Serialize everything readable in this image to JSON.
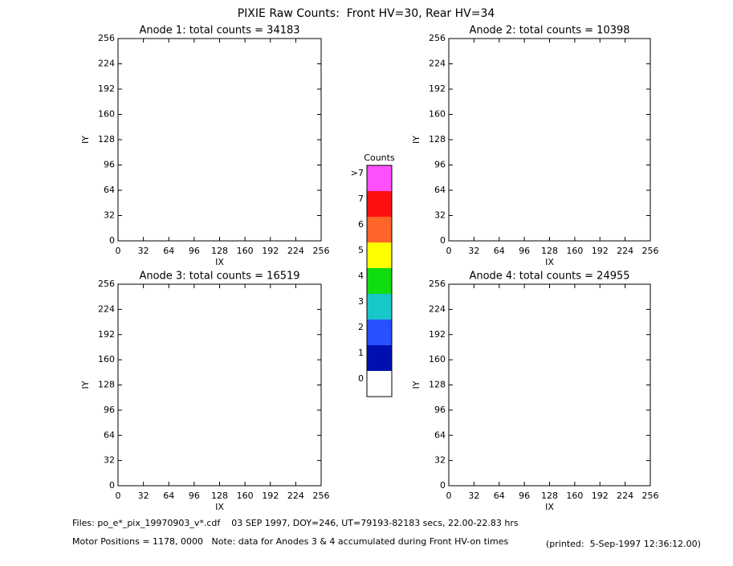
{
  "title": "PIXIE Raw Counts:  Front HV=30, Rear HV=34",
  "chart_data": [
    {
      "type": "heatmap",
      "title": "Anode 1: total counts = 34183",
      "xlabel": "IX",
      "ylabel": "IY",
      "xlim": [
        0,
        256
      ],
      "ylim": [
        0,
        256
      ],
      "xticks": [
        0,
        32,
        64,
        96,
        128,
        160,
        192,
        224,
        256
      ],
      "yticks": [
        0,
        32,
        64,
        96,
        128,
        160,
        192,
        224,
        256
      ]
    },
    {
      "type": "heatmap",
      "title": "Anode 2: total counts = 10398",
      "xlabel": "IX",
      "ylabel": "IY",
      "xlim": [
        0,
        256
      ],
      "ylim": [
        0,
        256
      ],
      "xticks": [
        0,
        32,
        64,
        96,
        128,
        160,
        192,
        224,
        256
      ],
      "yticks": [
        0,
        32,
        64,
        96,
        128,
        160,
        192,
        224,
        256
      ]
    },
    {
      "type": "heatmap",
      "title": "Anode 3: total counts = 16519",
      "xlabel": "IX",
      "ylabel": "IY",
      "xlim": [
        0,
        256
      ],
      "ylim": [
        0,
        256
      ],
      "xticks": [
        0,
        32,
        64,
        96,
        128,
        160,
        192,
        224,
        256
      ],
      "yticks": [
        0,
        32,
        64,
        96,
        128,
        160,
        192,
        224,
        256
      ]
    },
    {
      "type": "heatmap",
      "title": "Anode 4: total counts = 24955",
      "xlabel": "IX",
      "ylabel": "IY",
      "xlim": [
        0,
        256
      ],
      "ylim": [
        0,
        256
      ],
      "xticks": [
        0,
        32,
        64,
        96,
        128,
        160,
        192,
        224,
        256
      ],
      "yticks": [
        0,
        32,
        64,
        96,
        128,
        160,
        192,
        224,
        256
      ]
    }
  ],
  "colorbar": {
    "title": "Counts",
    "labels": [
      0,
      1,
      2,
      3,
      4,
      5,
      6,
      7,
      ">7"
    ],
    "colors": [
      "#ffffff",
      "#0010b0",
      "#2850ff",
      "#18c8c8",
      "#10dd10",
      "#ffff00",
      "#ff6428",
      "#ff1010",
      "#ff50ff"
    ]
  },
  "footer": {
    "files": "Files: po_e*_pix_19970903_v*.cdf    03 SEP 1997, DOY=246, UT=79193-82183 secs, 22.00-22.83 hrs",
    "motor": "Motor Positions = 1178, 0000   Note: data for Anodes 3 & 4 accumulated during Front HV-on times",
    "printed": "(printed:  5-Sep-1997 12:36:12.00)"
  }
}
